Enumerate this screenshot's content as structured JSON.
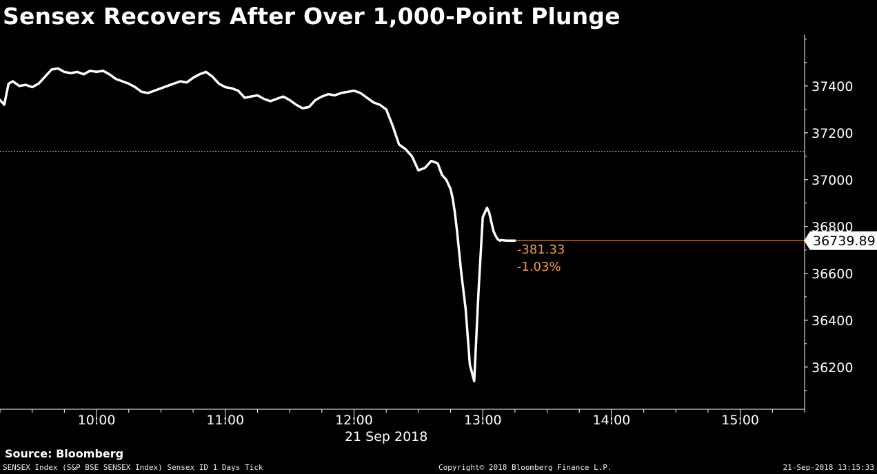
{
  "title": "Sensex Recovers After Over 1,000-Point Plunge",
  "source": "Source: Bloomberg",
  "footer": {
    "left": "SENSEX Index (S&P BSE SENSEX Index) Sensex ID 1 Days  Tick",
    "middle": "Copyright© 2018 Bloomberg Finance L.P.",
    "right": "21-Sep-2018 13:15:33"
  },
  "colors": {
    "background": "#000000",
    "line": "#ffffff",
    "accent": "#f39c34"
  },
  "chart_data": {
    "type": "line",
    "title": "Sensex Recovers After Over 1,000-Point Plunge",
    "date_label": "21 Sep 2018",
    "x_ticks": [
      "10:00",
      "11:00",
      "12:00",
      "13:00",
      "14:00",
      "15:00"
    ],
    "y_ticks": [
      "36200",
      "36400",
      "36600",
      "36800",
      "37000",
      "37200",
      "37400"
    ],
    "xlim": [
      "09:15",
      "15:30"
    ],
    "ylim": [
      36020,
      37620
    ],
    "grid": false,
    "reference_line": {
      "value": 37121.22,
      "style": "dotted"
    },
    "last_value": 36739.89,
    "last_value_label": "36739.89",
    "change": "-381.33",
    "change_pct": "-1.03%",
    "series": [
      {
        "x": [
          "09:15",
          "09:17",
          "09:19",
          "09:21",
          "09:24",
          "09:27",
          "09:30",
          "09:33",
          "09:36",
          "09:39",
          "09:42",
          "09:45",
          "09:48",
          "09:51",
          "09:54",
          "09:57",
          "10:00",
          "10:03",
          "10:06",
          "10:09",
          "10:12",
          "10:15",
          "10:18",
          "10:21",
          "10:24",
          "10:27",
          "10:30",
          "10:33",
          "10:36",
          "10:39",
          "10:42",
          "10:45",
          "10:48",
          "10:51",
          "10:54",
          "10:57",
          "11:00",
          "11:03",
          "11:06",
          "11:09",
          "11:12",
          "11:15",
          "11:18",
          "11:21",
          "11:24",
          "11:27",
          "11:30",
          "11:33",
          "11:36",
          "11:39",
          "11:42",
          "11:45",
          "11:48",
          "11:51",
          "11:54",
          "11:57",
          "12:00",
          "12:03",
          "12:06",
          "12:09",
          "12:12",
          "12:15",
          "12:18",
          "12:21",
          "12:24",
          "12:27",
          "12:30",
          "12:33",
          "12:36",
          "12:39",
          "12:41",
          "12:43",
          "12:45",
          "12:46",
          "12:47",
          "12:48",
          "12:50",
          "12:52",
          "12:54",
          "12:56",
          "12:58",
          "13:00",
          "13:02",
          "13:03",
          "13:04",
          "13:05",
          "13:06",
          "13:07",
          "13:08",
          "13:09",
          "13:10",
          "13:11",
          "13:12",
          "13:13",
          "13:14",
          "13:15"
        ],
        "y": [
          37340,
          37320,
          37410,
          37420,
          37400,
          37405,
          37395,
          37410,
          37440,
          37470,
          37475,
          37460,
          37455,
          37460,
          37450,
          37465,
          37460,
          37465,
          37450,
          37430,
          37420,
          37410,
          37395,
          37375,
          37370,
          37380,
          37390,
          37400,
          37410,
          37420,
          37415,
          37435,
          37450,
          37460,
          37440,
          37410,
          37395,
          37390,
          37380,
          37350,
          37355,
          37360,
          37345,
          37335,
          37345,
          37355,
          37340,
          37320,
          37305,
          37310,
          37340,
          37355,
          37365,
          37360,
          37370,
          37375,
          37380,
          37370,
          37350,
          37330,
          37320,
          37300,
          37230,
          37150,
          37130,
          37100,
          37040,
          37050,
          37080,
          37070,
          37020,
          37000,
          36960,
          36920,
          36860,
          36780,
          36600,
          36450,
          36210,
          36140,
          36520,
          36840,
          36880,
          36860,
          36820,
          36780,
          36760,
          36745,
          36740,
          36742,
          36741,
          36740,
          36740,
          36740,
          36740,
          36739.89
        ]
      }
    ]
  }
}
